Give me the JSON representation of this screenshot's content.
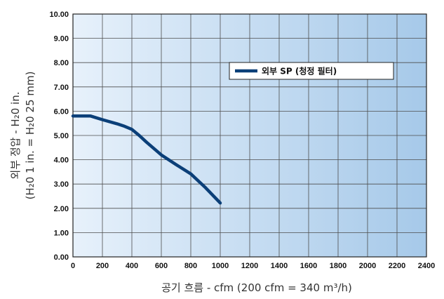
{
  "chart_data": {
    "type": "line",
    "xlabel": "공기 흐름 - cfm (200 cfm = 340 m³/h)",
    "ylabel_line1": "외부 정압 - H₂0 in.",
    "ylabel_line2": "(H₂0 1 in. = H₂0 25 mm)",
    "xlim": [
      0,
      2400
    ],
    "ylim": [
      0,
      10
    ],
    "x_ticks": [
      "0",
      "200",
      "400",
      "600",
      "800",
      "1000",
      "1200",
      "1400",
      "1600",
      "1800",
      "2000",
      "2200",
      "2400"
    ],
    "y_ticks": [
      "0.00",
      "1.00",
      "2.00",
      "3.00",
      "4.00",
      "5.00",
      "6.00",
      "7.00",
      "8.00",
      "9.00",
      "10.00"
    ],
    "grid": true,
    "legend_position": "top-right",
    "series": [
      {
        "name": "외부 SP (청정 필터)",
        "color": "#0b3f78",
        "x": [
          0,
          120,
          200,
          300,
          350,
          400,
          450,
          500,
          600,
          700,
          800,
          900,
          1000
        ],
        "y": [
          5.8,
          5.8,
          5.65,
          5.48,
          5.38,
          5.25,
          5.0,
          4.72,
          4.2,
          3.8,
          3.42,
          2.85,
          2.22
        ]
      }
    ],
    "colors": {
      "plot_bg_light": "#e7f1fb",
      "plot_bg_dark": "#a6c9e9",
      "grid": "#4d4d4d",
      "border": "#222222"
    }
  }
}
